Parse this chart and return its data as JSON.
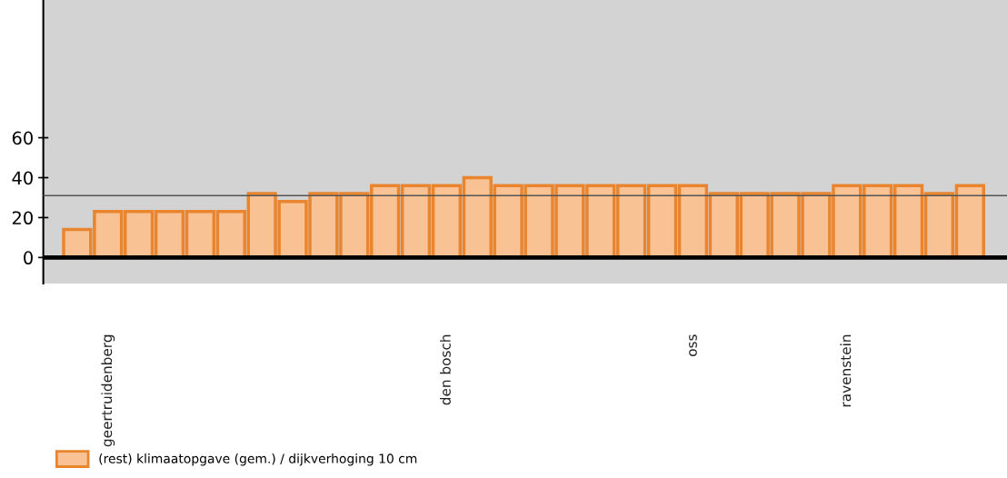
{
  "chart_data": {
    "type": "bar",
    "categories": [
      null,
      "geertruidenberg",
      null,
      null,
      null,
      null,
      null,
      null,
      null,
      null,
      null,
      null,
      "den bosch",
      null,
      null,
      null,
      null,
      null,
      null,
      null,
      "oss",
      null,
      null,
      null,
      null,
      "ravenstein",
      null,
      null,
      null,
      null
    ],
    "series": [
      {
        "name": "(rest) klimaatopgave (gem.) / dijkverhoging 10 cm",
        "color": "#f8c294",
        "values": [
          14,
          23,
          23,
          23,
          23,
          23,
          32,
          28,
          32,
          32,
          36,
          36,
          36,
          40,
          36,
          36,
          36,
          36,
          36,
          36,
          36,
          32,
          32,
          32,
          32,
          36,
          36,
          36,
          32,
          36
        ]
      }
    ],
    "ylim": [
      -13,
      129
    ],
    "yticks": [
      0,
      20,
      40,
      60
    ],
    "ref_lines": [
      {
        "axis": "y",
        "value": 0,
        "color": "#000000"
      },
      {
        "axis": "y",
        "value": 31,
        "color": "#555555"
      }
    ],
    "grid": false,
    "legend": "bottom left"
  }
}
